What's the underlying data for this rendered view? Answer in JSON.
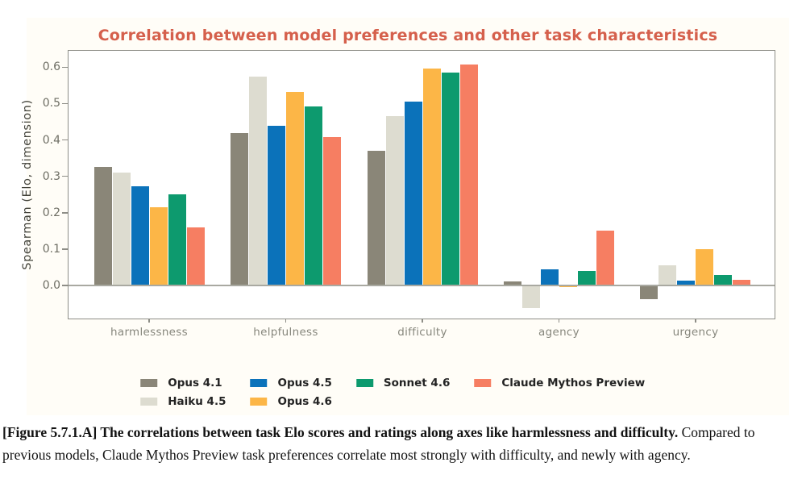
{
  "chart_data": {
    "type": "bar",
    "title": "Correlation between model preferences and other task characteristics",
    "title_color": "#d5604c",
    "ylabel": "Spearman (Elo, dimension)",
    "xlabel": "",
    "categories": [
      "harmlessness",
      "helpfulness",
      "difficulty",
      "agency",
      "urgency"
    ],
    "series": [
      {
        "name": "Opus 4.1",
        "color": "#8a8678",
        "values": [
          0.325,
          0.42,
          0.37,
          0.012,
          -0.038
        ]
      },
      {
        "name": "Haiku 4.5",
        "color": "#dddcd0",
        "values": [
          0.31,
          0.573,
          0.465,
          -0.062,
          0.055
        ]
      },
      {
        "name": "Opus 4.5",
        "color": "#0b72ba",
        "values": [
          0.272,
          0.44,
          0.505,
          0.045,
          0.013
        ]
      },
      {
        "name": "Opus 4.6",
        "color": "#fcb647",
        "values": [
          0.215,
          0.532,
          0.596,
          -0.005,
          0.101
        ]
      },
      {
        "name": "Sonnet 4.6",
        "color": "#0d9a6e",
        "values": [
          0.25,
          0.492,
          0.585,
          0.04,
          0.029
        ]
      },
      {
        "name": "Claude Mythos Preview",
        "color": "#f67e62",
        "values": [
          0.16,
          0.408,
          0.608,
          0.152,
          0.016
        ]
      }
    ],
    "ylim": [
      -0.095,
      0.645
    ],
    "yticks": [
      0.0,
      0.1,
      0.2,
      0.3,
      0.4,
      0.5,
      0.6
    ],
    "grid": false,
    "legend_position": "below-chart",
    "legend_columns": [
      [
        "Opus 4.1",
        "Haiku 4.5"
      ],
      [
        "Opus 4.5",
        "Opus 4.6"
      ],
      [
        "Sonnet 4.6"
      ],
      [
        "Claude Mythos Preview"
      ]
    ]
  },
  "caption": {
    "bold": "[Figure 5.7.1.A] The correlations between task Elo scores and ratings along axes like harmlessness and difficulty.",
    "regular": " Compared to previous models, Claude Mythos Preview task preferences correlate most strongly with difficulty, and newly with agency."
  }
}
